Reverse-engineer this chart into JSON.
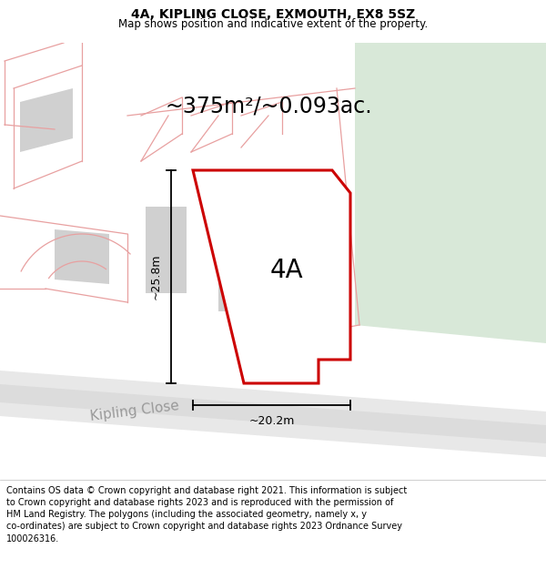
{
  "title": "4A, KIPLING CLOSE, EXMOUTH, EX8 5SZ",
  "subtitle": "Map shows position and indicative extent of the property.",
  "footer": "Contains OS data © Crown copyright and database right 2021. This information is subject to Crown copyright and database rights 2023 and is reproduced with the permission of HM Land Registry. The polygons (including the associated geometry, namely x, y co-ordinates) are subject to Crown copyright and database rights 2023 Ordnance Survey 100026316.",
  "area_text": "~375m²/~0.093ac.",
  "label_4A": "4A",
  "dim_height": "~25.8m",
  "dim_width": "~20.2m",
  "street_label": "Kipling Close",
  "map_bg": "#ffffff",
  "green_area_color": "#d8e8d8",
  "plot_outline_color": "#cc0000",
  "building_fill_color": "#d0d0d0",
  "neighbor_line_color": "#e8a0a0",
  "title_fontsize": 10,
  "subtitle_fontsize": 8.5,
  "footer_fontsize": 7,
  "area_fontsize": 17,
  "label_fontsize": 20,
  "dim_fontsize": 9,
  "street_fontsize": 11
}
